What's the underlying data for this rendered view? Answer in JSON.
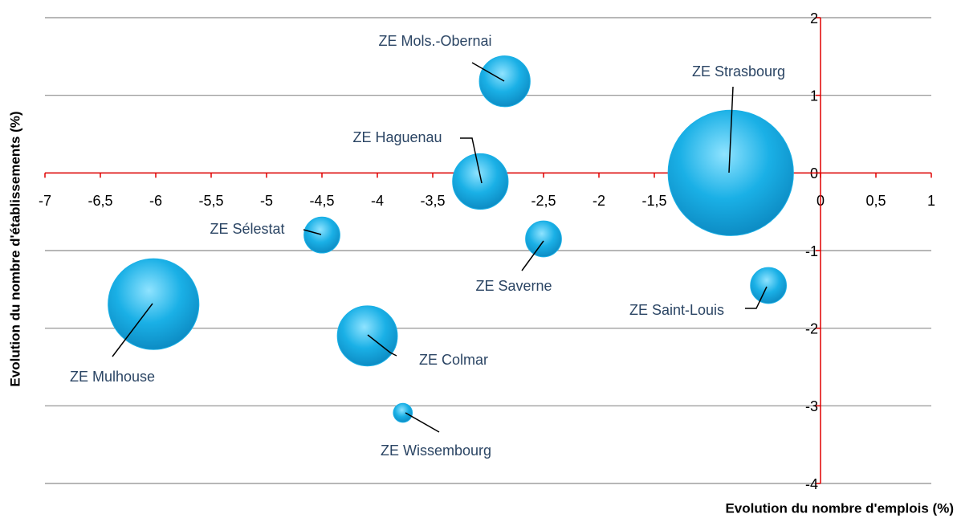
{
  "chart_data": {
    "type": "bubble",
    "x_label": "Evolution du nombre d'emplois (%)",
    "y_label": "Evolution du nombre d'établissements (%)",
    "labels": [
      "ZE Mols.-Obernai",
      "ZE Strasbourg",
      "ZE Haguenau",
      "ZE Sélestat",
      "ZE Saverne",
      "ZE Saint-Louis",
      "ZE Mulhouse",
      "ZE Colmar",
      "ZE Wissembourg"
    ],
    "x": [
      -2.85,
      -0.81,
      -3.07,
      -4.5,
      -2.5,
      -0.47,
      -6.02,
      -4.09,
      -3.77
    ],
    "values": [
      1.18,
      0,
      -0.11,
      -0.8,
      -0.85,
      -1.45,
      -1.69,
      -2.1,
      -3.09
    ],
    "sizes": [
      10,
      61,
      12,
      5,
      5,
      5,
      32,
      14,
      1.4
    ],
    "color": "#1ab0e6",
    "xlim": [
      -7,
      1
    ],
    "xticks": [
      -7,
      {
        "value": -6.5,
        "label": "-6,5"
      },
      -6,
      {
        "value": -5.5,
        "label": "-5,5"
      },
      -5,
      {
        "value": -4.5,
        "label": "-4,5"
      },
      -4,
      {
        "value": -3.5,
        "label": "-3,5"
      },
      -3,
      {
        "value": -2.5,
        "label": "-2,5"
      },
      -2,
      {
        "value": -1.5,
        "label": "-1,5"
      },
      -1,
      {
        "value": -0.5,
        "label": "-0,5"
      },
      0,
      {
        "value": 0.5,
        "label": "0,5"
      },
      1
    ],
    "ylim": [
      -4,
      2
    ],
    "yticks": [
      -4,
      -3,
      -2,
      -1,
      0,
      1,
      2
    ],
    "grid": true
  }
}
